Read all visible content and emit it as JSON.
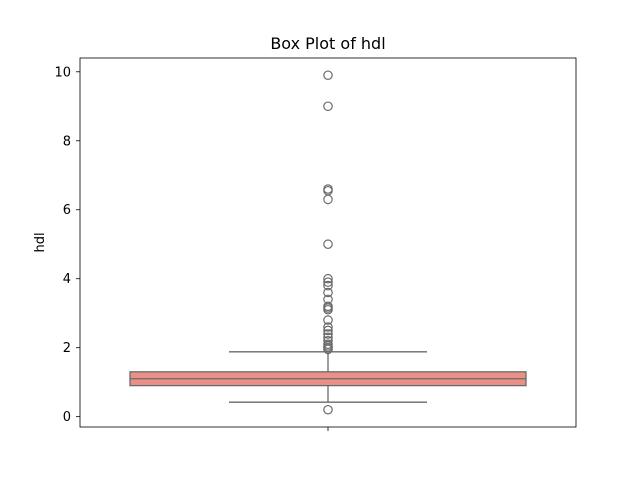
{
  "chart_data": {
    "type": "box",
    "title": "Box Plot of hdl",
    "xlabel": "",
    "ylabel": "hdl",
    "ylim": [
      -0.3,
      10.4
    ],
    "yticks": [
      0,
      2,
      4,
      6,
      8,
      10
    ],
    "grid": false,
    "legend": "none",
    "box_color": "#ea9087",
    "line_color": "#6a6a6a",
    "series": [
      {
        "whisker_low": 0.42,
        "q1": 0.9,
        "median": 1.1,
        "q3": 1.3,
        "whisker_high": 1.88,
        "outliers": [
          0.2,
          1.95,
          2.0,
          2.05,
          2.1,
          2.2,
          2.3,
          2.4,
          2.5,
          2.6,
          2.8,
          3.1,
          3.15,
          3.2,
          3.4,
          3.6,
          3.8,
          3.9,
          4.0,
          5.0,
          6.3,
          6.55,
          6.6,
          9.0,
          9.9
        ]
      }
    ]
  }
}
